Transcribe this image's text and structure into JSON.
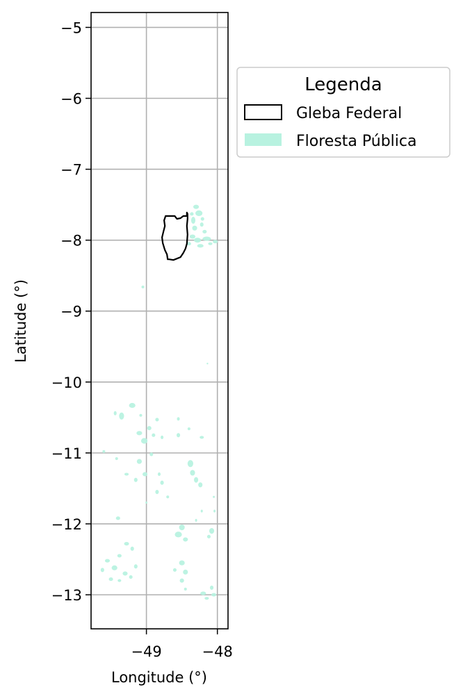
{
  "chart_data": {
    "type": "map",
    "xlabel": "Longitude (°)",
    "ylabel": "Latitude (°)",
    "xlim": [
      -49.78,
      -47.85
    ],
    "ylim": [
      -13.48,
      -4.79
    ],
    "x_ticks": [
      {
        "value": -49,
        "label": "−49"
      },
      {
        "value": -48,
        "label": "−48"
      }
    ],
    "y_ticks": [
      {
        "value": -5,
        "label": "−5"
      },
      {
        "value": -6,
        "label": "−6"
      },
      {
        "value": -7,
        "label": "−7"
      },
      {
        "value": -8,
        "label": "−8"
      },
      {
        "value": -9,
        "label": "−9"
      },
      {
        "value": -10,
        "label": "−10"
      },
      {
        "value": -11,
        "label": "−11"
      },
      {
        "value": -12,
        "label": "−12"
      },
      {
        "value": -13,
        "label": "−13"
      }
    ],
    "grid": true,
    "legend": {
      "title": "Legenda",
      "placement": "right, outside plot",
      "entries": [
        {
          "label": "Gleba Federal",
          "style": "outline",
          "edge_color": "#000000"
        },
        {
          "label": "Floresta Pública",
          "style": "fill",
          "fill_color": "#b8f2e0"
        }
      ]
    },
    "gleba_federal": [
      [
        -48.43,
        -7.61
      ],
      [
        -48.42,
        -7.63
      ],
      [
        -48.42,
        -7.7
      ],
      [
        -48.43,
        -7.8
      ],
      [
        -48.42,
        -7.92
      ],
      [
        -48.43,
        -8.05
      ],
      [
        -48.45,
        -8.12
      ],
      [
        -48.48,
        -8.18
      ],
      [
        -48.52,
        -8.24
      ],
      [
        -48.57,
        -8.26
      ],
      [
        -48.62,
        -8.28
      ],
      [
        -48.68,
        -8.27
      ],
      [
        -48.7,
        -8.27
      ],
      [
        -48.71,
        -8.2
      ],
      [
        -48.74,
        -8.14
      ],
      [
        -48.77,
        -8.04
      ],
      [
        -48.78,
        -7.96
      ],
      [
        -48.76,
        -7.88
      ],
      [
        -48.74,
        -7.8
      ],
      [
        -48.75,
        -7.72
      ],
      [
        -48.73,
        -7.66
      ],
      [
        -48.6,
        -7.66
      ],
      [
        -48.57,
        -7.7
      ],
      [
        -48.52,
        -7.69
      ],
      [
        -48.48,
        -7.66
      ],
      [
        -48.43,
        -7.66
      ]
    ],
    "floresta_publica": [
      [
        -48.3,
        -7.53,
        0.08,
        0.06
      ],
      [
        -48.26,
        -7.62,
        0.1,
        0.08
      ],
      [
        -48.34,
        -7.72,
        0.06,
        0.1
      ],
      [
        -48.32,
        -7.83,
        0.07,
        0.07
      ],
      [
        -48.22,
        -7.78,
        0.05,
        0.06
      ],
      [
        -48.18,
        -7.88,
        0.06,
        0.05
      ],
      [
        -48.35,
        -7.95,
        0.08,
        0.06
      ],
      [
        -48.28,
        -8.0,
        0.1,
        0.07
      ],
      [
        -48.15,
        -7.98,
        0.12,
        0.06
      ],
      [
        -48.03,
        -8.02,
        0.07,
        0.05
      ],
      [
        -48.4,
        -8.05,
        0.06,
        0.05
      ],
      [
        -48.24,
        -8.08,
        0.09,
        0.05
      ],
      [
        -48.1,
        -8.05,
        0.06,
        0.04
      ],
      [
        -48.21,
        -7.7,
        0.05,
        0.05
      ],
      [
        -48.36,
        -7.63,
        0.05,
        0.05
      ],
      [
        -49.05,
        -8.66,
        0.04,
        0.04
      ],
      [
        -48.14,
        -9.74,
        0.02,
        0.02
      ],
      [
        -49.2,
        -10.33,
        0.09,
        0.07
      ],
      [
        -49.35,
        -10.48,
        0.07,
        0.1
      ],
      [
        -49.44,
        -10.44,
        0.04,
        0.06
      ],
      [
        -49.08,
        -10.47,
        0.04,
        0.04
      ],
      [
        -48.85,
        -10.53,
        0.05,
        0.05
      ],
      [
        -48.55,
        -10.52,
        0.04,
        0.05
      ],
      [
        -48.96,
        -10.65,
        0.06,
        0.06
      ],
      [
        -49.1,
        -10.72,
        0.08,
        0.06
      ],
      [
        -49.03,
        -10.83,
        0.09,
        0.08
      ],
      [
        -48.9,
        -10.75,
        0.05,
        0.05
      ],
      [
        -48.78,
        -10.78,
        0.04,
        0.05
      ],
      [
        -48.55,
        -10.75,
        0.05,
        0.06
      ],
      [
        -48.22,
        -10.78,
        0.06,
        0.04
      ],
      [
        -48.4,
        -10.66,
        0.04,
        0.04
      ],
      [
        -49.6,
        -10.98,
        0.04,
        0.04
      ],
      [
        -49.42,
        -11.08,
        0.04,
        0.04
      ],
      [
        -49.1,
        -11.12,
        0.07,
        0.07
      ],
      [
        -48.93,
        -11.02,
        0.05,
        0.05
      ],
      [
        -48.38,
        -11.15,
        0.08,
        0.1
      ],
      [
        -48.35,
        -11.28,
        0.07,
        0.08
      ],
      [
        -48.3,
        -11.38,
        0.06,
        0.08
      ],
      [
        -48.24,
        -11.45,
        0.06,
        0.07
      ],
      [
        -49.28,
        -11.3,
        0.06,
        0.04
      ],
      [
        -49.15,
        -11.38,
        0.05,
        0.06
      ],
      [
        -49.02,
        -11.3,
        0.07,
        0.06
      ],
      [
        -48.82,
        -11.3,
        0.04,
        0.05
      ],
      [
        -48.78,
        -11.42,
        0.05,
        0.06
      ],
      [
        -48.85,
        -11.55,
        0.05,
        0.06
      ],
      [
        -49.0,
        -11.7,
        0.03,
        0.03
      ],
      [
        -48.7,
        -11.62,
        0.04,
        0.04
      ],
      [
        -48.05,
        -11.62,
        0.03,
        0.03
      ],
      [
        -49.4,
        -11.92,
        0.06,
        0.05
      ],
      [
        -48.5,
        -12.05,
        0.08,
        0.08
      ],
      [
        -48.55,
        -12.15,
        0.1,
        0.08
      ],
      [
        -48.45,
        -12.22,
        0.07,
        0.06
      ],
      [
        -48.08,
        -12.1,
        0.07,
        0.08
      ],
      [
        -48.12,
        -12.18,
        0.05,
        0.05
      ],
      [
        -48.04,
        -11.82,
        0.03,
        0.04
      ],
      [
        -48.22,
        -11.82,
        0.03,
        0.04
      ],
      [
        -48.3,
        -11.95,
        0.03,
        0.04
      ],
      [
        -49.55,
        -12.52,
        0.07,
        0.05
      ],
      [
        -49.38,
        -12.45,
        0.06,
        0.05
      ],
      [
        -49.28,
        -12.28,
        0.07,
        0.05
      ],
      [
        -49.2,
        -12.35,
        0.05,
        0.06
      ],
      [
        -49.62,
        -12.65,
        0.05,
        0.06
      ],
      [
        -49.45,
        -12.62,
        0.08,
        0.07
      ],
      [
        -49.3,
        -12.7,
        0.07,
        0.06
      ],
      [
        -49.5,
        -12.78,
        0.06,
        0.05
      ],
      [
        -49.38,
        -12.8,
        0.05,
        0.04
      ],
      [
        -49.15,
        -12.6,
        0.05,
        0.06
      ],
      [
        -49.22,
        -12.75,
        0.05,
        0.05
      ],
      [
        -48.5,
        -12.55,
        0.08,
        0.07
      ],
      [
        -48.45,
        -12.68,
        0.07,
        0.07
      ],
      [
        -48.5,
        -12.8,
        0.06,
        0.06
      ],
      [
        -48.45,
        -12.92,
        0.04,
        0.04
      ],
      [
        -48.6,
        -12.65,
        0.05,
        0.05
      ],
      [
        -48.2,
        -12.98,
        0.08,
        0.05
      ],
      [
        -48.08,
        -12.9,
        0.05,
        0.06
      ],
      [
        -48.05,
        -13.0,
        0.07,
        0.05
      ],
      [
        -48.15,
        -13.05,
        0.06,
        0.04
      ]
    ]
  }
}
